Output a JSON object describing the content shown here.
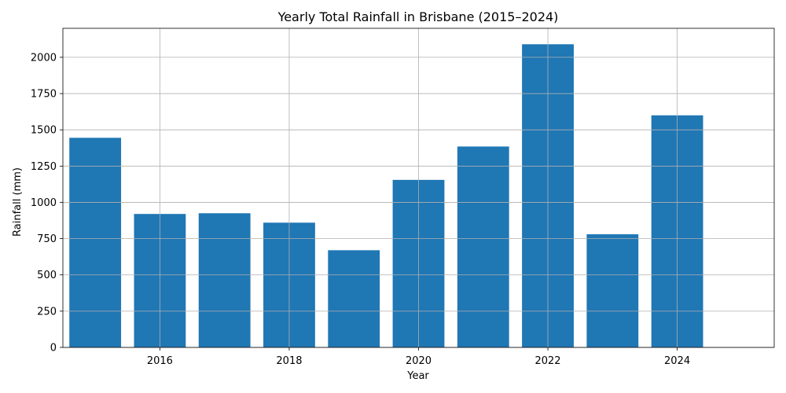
{
  "chart_data": {
    "type": "bar",
    "title": "Yearly Total Rainfall in Brisbane (2015–2024)",
    "xlabel": "Year",
    "ylabel": "Rainfall (mm)",
    "x": [
      2015,
      2016,
      2017,
      2018,
      2019,
      2020,
      2021,
      2022,
      2023,
      2024
    ],
    "values": [
      1445,
      920,
      925,
      860,
      670,
      1155,
      1385,
      2090,
      780,
      1600
    ],
    "xlim": [
      2014.5,
      2025.5
    ],
    "ylim": [
      0,
      2200
    ],
    "xticks": [
      2016,
      2018,
      2020,
      2022,
      2024
    ],
    "yticks": [
      0,
      250,
      500,
      750,
      1000,
      1250,
      1500,
      1750,
      2000
    ],
    "bar_color": "#1f77b4",
    "grid": true,
    "legend": "none"
  }
}
